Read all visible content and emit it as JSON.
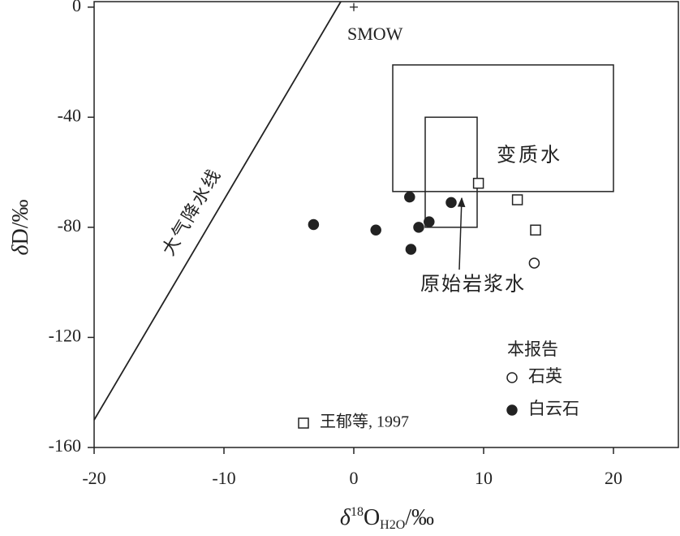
{
  "chart_data": {
    "type": "scatter",
    "x_label": {
      "delta": "δ",
      "sup": "18",
      "main": "O",
      "sub": "H2O",
      "unit": "/‰"
    },
    "y_label": {
      "delta": "δ",
      "main": "D/‰"
    },
    "xlim": [
      -20,
      25
    ],
    "ylim": [
      -160,
      2
    ],
    "xticks": [
      -20,
      -10,
      0,
      10,
      20
    ],
    "yticks": [
      -160,
      -120,
      -80,
      -40,
      0
    ],
    "legend_title": "本报告",
    "series": [
      {
        "name": "石英",
        "marker": "open-circle",
        "color": "#222",
        "x": [
          13.9
        ],
        "y": [
          -93
        ]
      },
      {
        "name": "白云石",
        "marker": "filled-circle",
        "color": "#222",
        "x": [
          -3.1,
          1.7,
          4.3,
          4.4,
          5.0,
          5.8,
          7.5
        ],
        "y": [
          -79,
          -81,
          -69,
          -88,
          -80,
          -78,
          -71
        ]
      },
      {
        "name": "王郁等, 1997",
        "marker": "open-square",
        "color": "#222",
        "x": [
          9.6,
          12.6,
          14.0
        ],
        "y": [
          -64,
          -70,
          -81
        ]
      }
    ],
    "lines": [
      {
        "name": "大气降水线",
        "x": [
          -20,
          -1
        ],
        "y": [
          -150,
          2
        ]
      }
    ],
    "regions": [
      {
        "name": "变质水",
        "x": [
          3,
          20
        ],
        "y": [
          -67,
          -21
        ]
      },
      {
        "name": "原始岩浆水",
        "x": [
          5.5,
          9.5
        ],
        "y": [
          -80,
          -40
        ]
      }
    ],
    "reference_point": {
      "name": "SMOW",
      "x": 0,
      "y": 0
    }
  }
}
